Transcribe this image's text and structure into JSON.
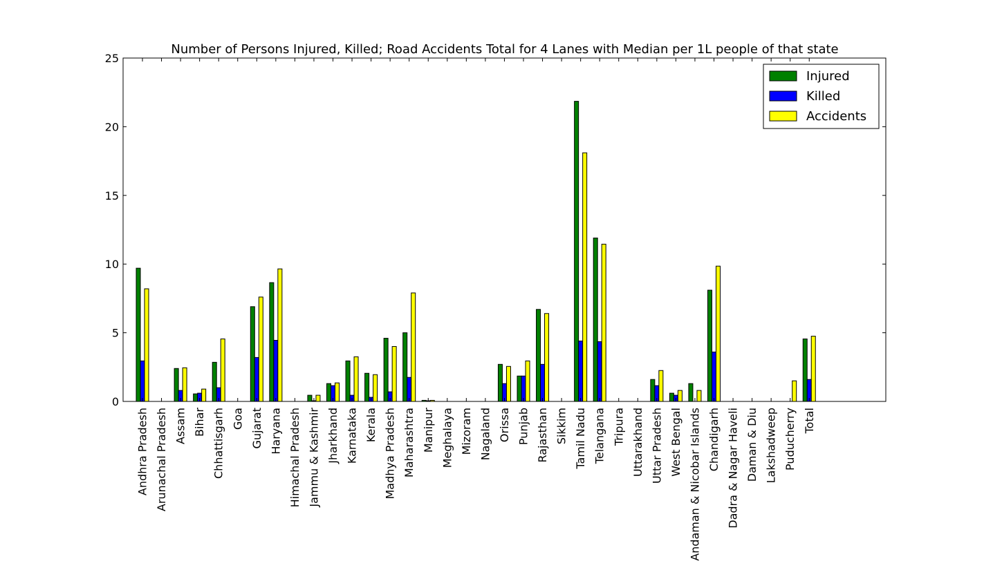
{
  "chart_data": {
    "type": "bar",
    "title": "Number of Persons Injured, Killed; Road Accidents Total for 4 Lanes with Median per 1L people of that state",
    "xlabel": "",
    "ylabel": "",
    "ylim": [
      0,
      25
    ],
    "yticks": [
      "0",
      "5",
      "10",
      "15",
      "20",
      "25"
    ],
    "grid": false,
    "legend_position": "top-right",
    "categories": [
      "Andhra Pradesh",
      "Arunachal Pradesh",
      "Assam",
      "Bihar",
      "Chhattisgarh",
      "Goa",
      "Gujarat",
      "Haryana",
      "Himachal Pradesh",
      "Jammu & Kashmir",
      "Jharkhand",
      "Karnataka",
      "Kerala",
      "Madhya Pradesh",
      "Maharashtra",
      "Manipur",
      "Meghalaya",
      "Mizoram",
      "Nagaland",
      "Orissa",
      "Punjab",
      "Rajasthan",
      "Sikkim",
      "Tamil Nadu",
      "Telangana",
      "Tripura",
      "Uttarakhand",
      "Uttar Pradesh",
      "West Bengal",
      "Andaman & Nicobar Islands",
      "Chandigarh",
      "Dadra & Nagar Haveli",
      "Daman & Diu",
      "Lakshadweep",
      "Puducherry",
      "Total"
    ],
    "series": [
      {
        "name": "Injured",
        "color": "#008000",
        "values": [
          9.7,
          0,
          2.4,
          0.55,
          2.85,
          0,
          6.9,
          8.65,
          0,
          0.45,
          1.3,
          2.95,
          2.05,
          4.6,
          5.0,
          0.08,
          0,
          0,
          0,
          2.7,
          1.85,
          6.7,
          0,
          21.85,
          11.9,
          0,
          0,
          1.6,
          0.6,
          1.3,
          8.1,
          0,
          0,
          0,
          0,
          4.55
        ]
      },
      {
        "name": "Killed",
        "color": "#0000ff",
        "values": [
          2.95,
          0,
          0.8,
          0.6,
          1.0,
          0,
          3.2,
          4.45,
          0,
          0.05,
          1.15,
          0.45,
          0.3,
          0.7,
          1.75,
          0.05,
          0,
          0,
          0,
          1.3,
          1.85,
          2.7,
          0,
          4.4,
          4.35,
          0,
          0,
          1.15,
          0.45,
          0,
          3.6,
          0,
          0,
          0,
          0,
          1.6
        ]
      },
      {
        "name": "Accidents",
        "color": "#ffff00",
        "values": [
          8.2,
          0,
          2.45,
          0.9,
          4.55,
          0,
          7.6,
          9.65,
          0,
          0.45,
          1.35,
          3.25,
          1.95,
          4.0,
          7.9,
          0.08,
          0,
          0,
          0,
          2.55,
          2.95,
          6.4,
          0,
          18.1,
          11.45,
          0,
          0,
          2.25,
          0.8,
          0.8,
          9.85,
          0,
          0,
          0,
          1.5,
          4.75
        ]
      }
    ]
  }
}
